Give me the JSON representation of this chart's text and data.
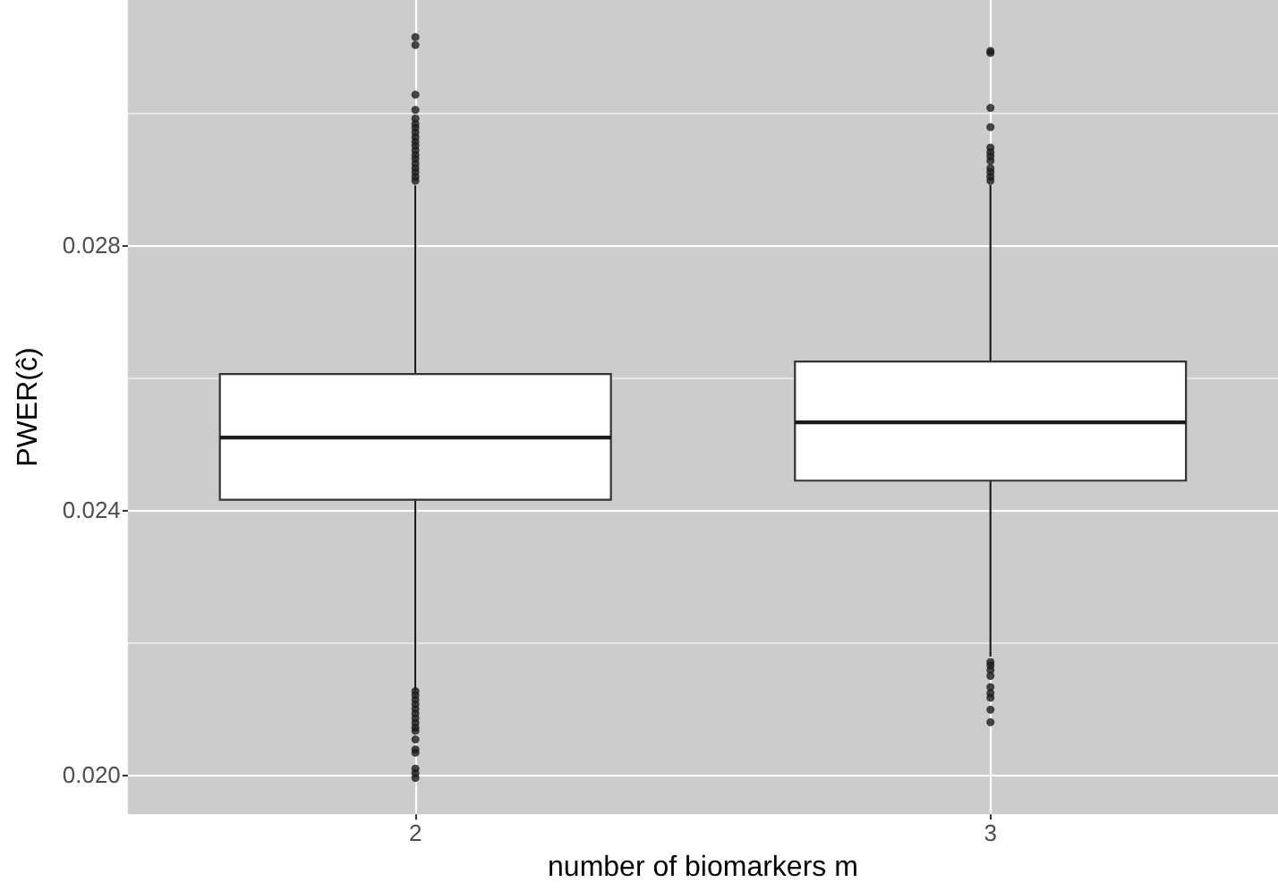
{
  "chart_data": {
    "type": "box",
    "xlabel": "number of biomarkers m",
    "ylabel": "PWER(ĉ)",
    "categories": [
      "2",
      "3"
    ],
    "boxes": [
      {
        "low": 0.02127,
        "q1": 0.02415,
        "median": 0.02509,
        "q3": 0.02605,
        "high": 0.0289,
        "outliers": [
          0.03114,
          0.03102,
          0.03027,
          0.03004,
          0.02991,
          0.02983,
          0.02977,
          0.0297,
          0.02963,
          0.02956,
          0.0295,
          0.02943,
          0.02936,
          0.0293,
          0.02923,
          0.02916,
          0.0291,
          0.02903,
          0.02897,
          0.02126,
          0.0212,
          0.02113,
          0.02106,
          0.02099,
          0.02092,
          0.02085,
          0.02078,
          0.02071,
          0.02066,
          0.02053,
          0.02038,
          0.02033,
          0.02009,
          0.02002,
          0.01995
        ]
      },
      {
        "low": 0.02178,
        "q1": 0.02444,
        "median": 0.02532,
        "q3": 0.02624,
        "high": 0.02891,
        "outliers": [
          0.03093,
          0.0309,
          0.03007,
          0.02978,
          0.02947,
          0.0294,
          0.02934,
          0.02927,
          0.02916,
          0.0291,
          0.02903,
          0.02897,
          0.0217,
          0.02165,
          0.02158,
          0.02149,
          0.02132,
          0.02123,
          0.02116,
          0.02098,
          0.02079
        ]
      }
    ],
    "ylim": [
      0.0194,
      0.0317
    ],
    "yticks": [
      {
        "value": 0.02,
        "label": "0.020"
      },
      {
        "value": 0.024,
        "label": "0.024"
      },
      {
        "value": 0.028,
        "label": "0.028"
      }
    ],
    "grid": true
  }
}
